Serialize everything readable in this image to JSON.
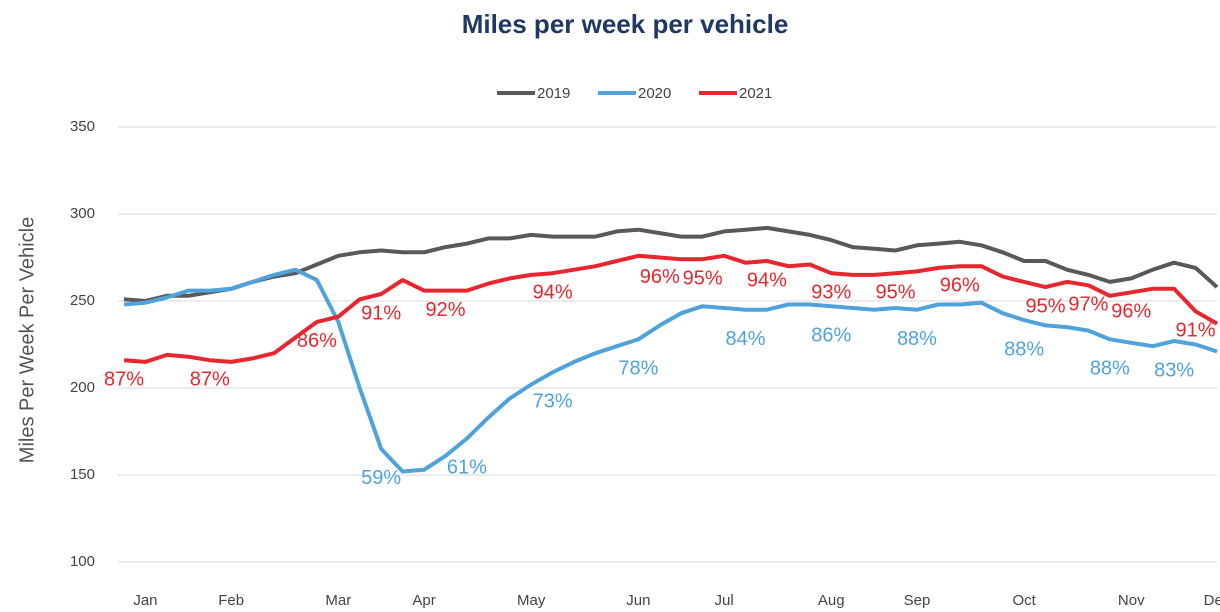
{
  "chart_data": {
    "type": "line",
    "title": "Miles per week per vehicle",
    "y_label": "Miles Per Week Per Vehicle",
    "categories": [
      null,
      "Jan",
      null,
      null,
      null,
      "Feb",
      null,
      null,
      null,
      null,
      "Mar",
      null,
      null,
      null,
      "Apr",
      null,
      null,
      null,
      null,
      "May",
      null,
      null,
      null,
      null,
      "Jun",
      null,
      null,
      null,
      "Jul",
      null,
      null,
      null,
      null,
      "Aug",
      null,
      null,
      null,
      "Sep",
      null,
      null,
      null,
      null,
      "Oct",
      null,
      null,
      null,
      null,
      "Nov",
      null,
      null,
      null,
      "Dec"
    ],
    "ylim": [
      100,
      350
    ],
    "yticks": [
      100,
      150,
      200,
      250,
      300,
      350
    ],
    "grid": true,
    "legend": "top",
    "series": [
      {
        "name": "2019",
        "color": "#595959",
        "values": [
          251,
          250,
          253,
          253,
          255,
          257,
          261,
          264,
          266,
          271,
          276,
          278,
          279,
          278,
          278,
          281,
          283,
          286,
          286,
          288,
          287,
          287,
          287,
          290,
          291,
          289,
          287,
          287,
          290,
          291,
          292,
          290,
          288,
          285,
          281,
          280,
          279,
          282,
          283,
          284,
          282,
          278,
          273,
          273,
          268,
          265,
          261,
          263,
          268,
          272,
          269,
          258
        ]
      },
      {
        "name": "2020",
        "color": "#4fa3dc",
        "values": [
          248,
          249,
          252,
          256,
          256,
          257,
          261,
          265,
          268,
          262,
          238,
          200,
          165,
          152,
          153,
          161,
          171,
          183,
          194,
          202,
          209,
          215,
          220,
          224,
          228,
          236,
          243,
          247,
          246,
          245,
          245,
          248,
          248,
          247,
          246,
          245,
          246,
          245,
          248,
          248,
          249,
          243,
          239,
          236,
          235,
          233,
          228,
          226,
          224,
          227,
          225,
          221
        ],
        "value_labels": [
          null,
          null,
          null,
          null,
          null,
          null,
          null,
          null,
          null,
          null,
          null,
          null,
          "59%",
          null,
          null,
          null,
          "61%",
          null,
          null,
          null,
          "73%",
          null,
          null,
          null,
          "78%",
          null,
          null,
          null,
          null,
          "84%",
          null,
          null,
          null,
          "86%",
          null,
          null,
          null,
          "88%",
          null,
          null,
          null,
          null,
          "88%",
          null,
          null,
          null,
          "88%",
          null,
          null,
          "83%",
          null,
          null
        ]
      },
      {
        "name": "2021",
        "color": "#e8262d",
        "values": [
          216,
          215,
          219,
          218,
          216,
          215,
          217,
          220,
          229,
          238,
          241,
          251,
          254,
          262,
          256,
          256,
          256,
          260,
          263,
          265,
          266,
          268,
          270,
          273,
          276,
          275,
          274,
          274,
          276,
          272,
          273,
          270,
          271,
          266,
          265,
          265,
          266,
          267,
          269,
          270,
          270,
          264,
          261,
          258,
          261,
          259,
          253,
          255,
          257,
          257,
          244,
          237
        ],
        "value_labels": [
          "87%",
          null,
          null,
          null,
          "87%",
          null,
          null,
          null,
          null,
          "86%",
          null,
          null,
          "91%",
          null,
          null,
          "92%",
          null,
          null,
          null,
          null,
          "94%",
          null,
          null,
          null,
          null,
          "96%",
          null,
          "95%",
          null,
          null,
          "94%",
          null,
          null,
          "93%",
          null,
          null,
          "95%",
          null,
          null,
          "96%",
          null,
          null,
          null,
          "95%",
          null,
          "97%",
          null,
          "96%",
          null,
          null,
          "91%",
          null
        ]
      }
    ]
  }
}
